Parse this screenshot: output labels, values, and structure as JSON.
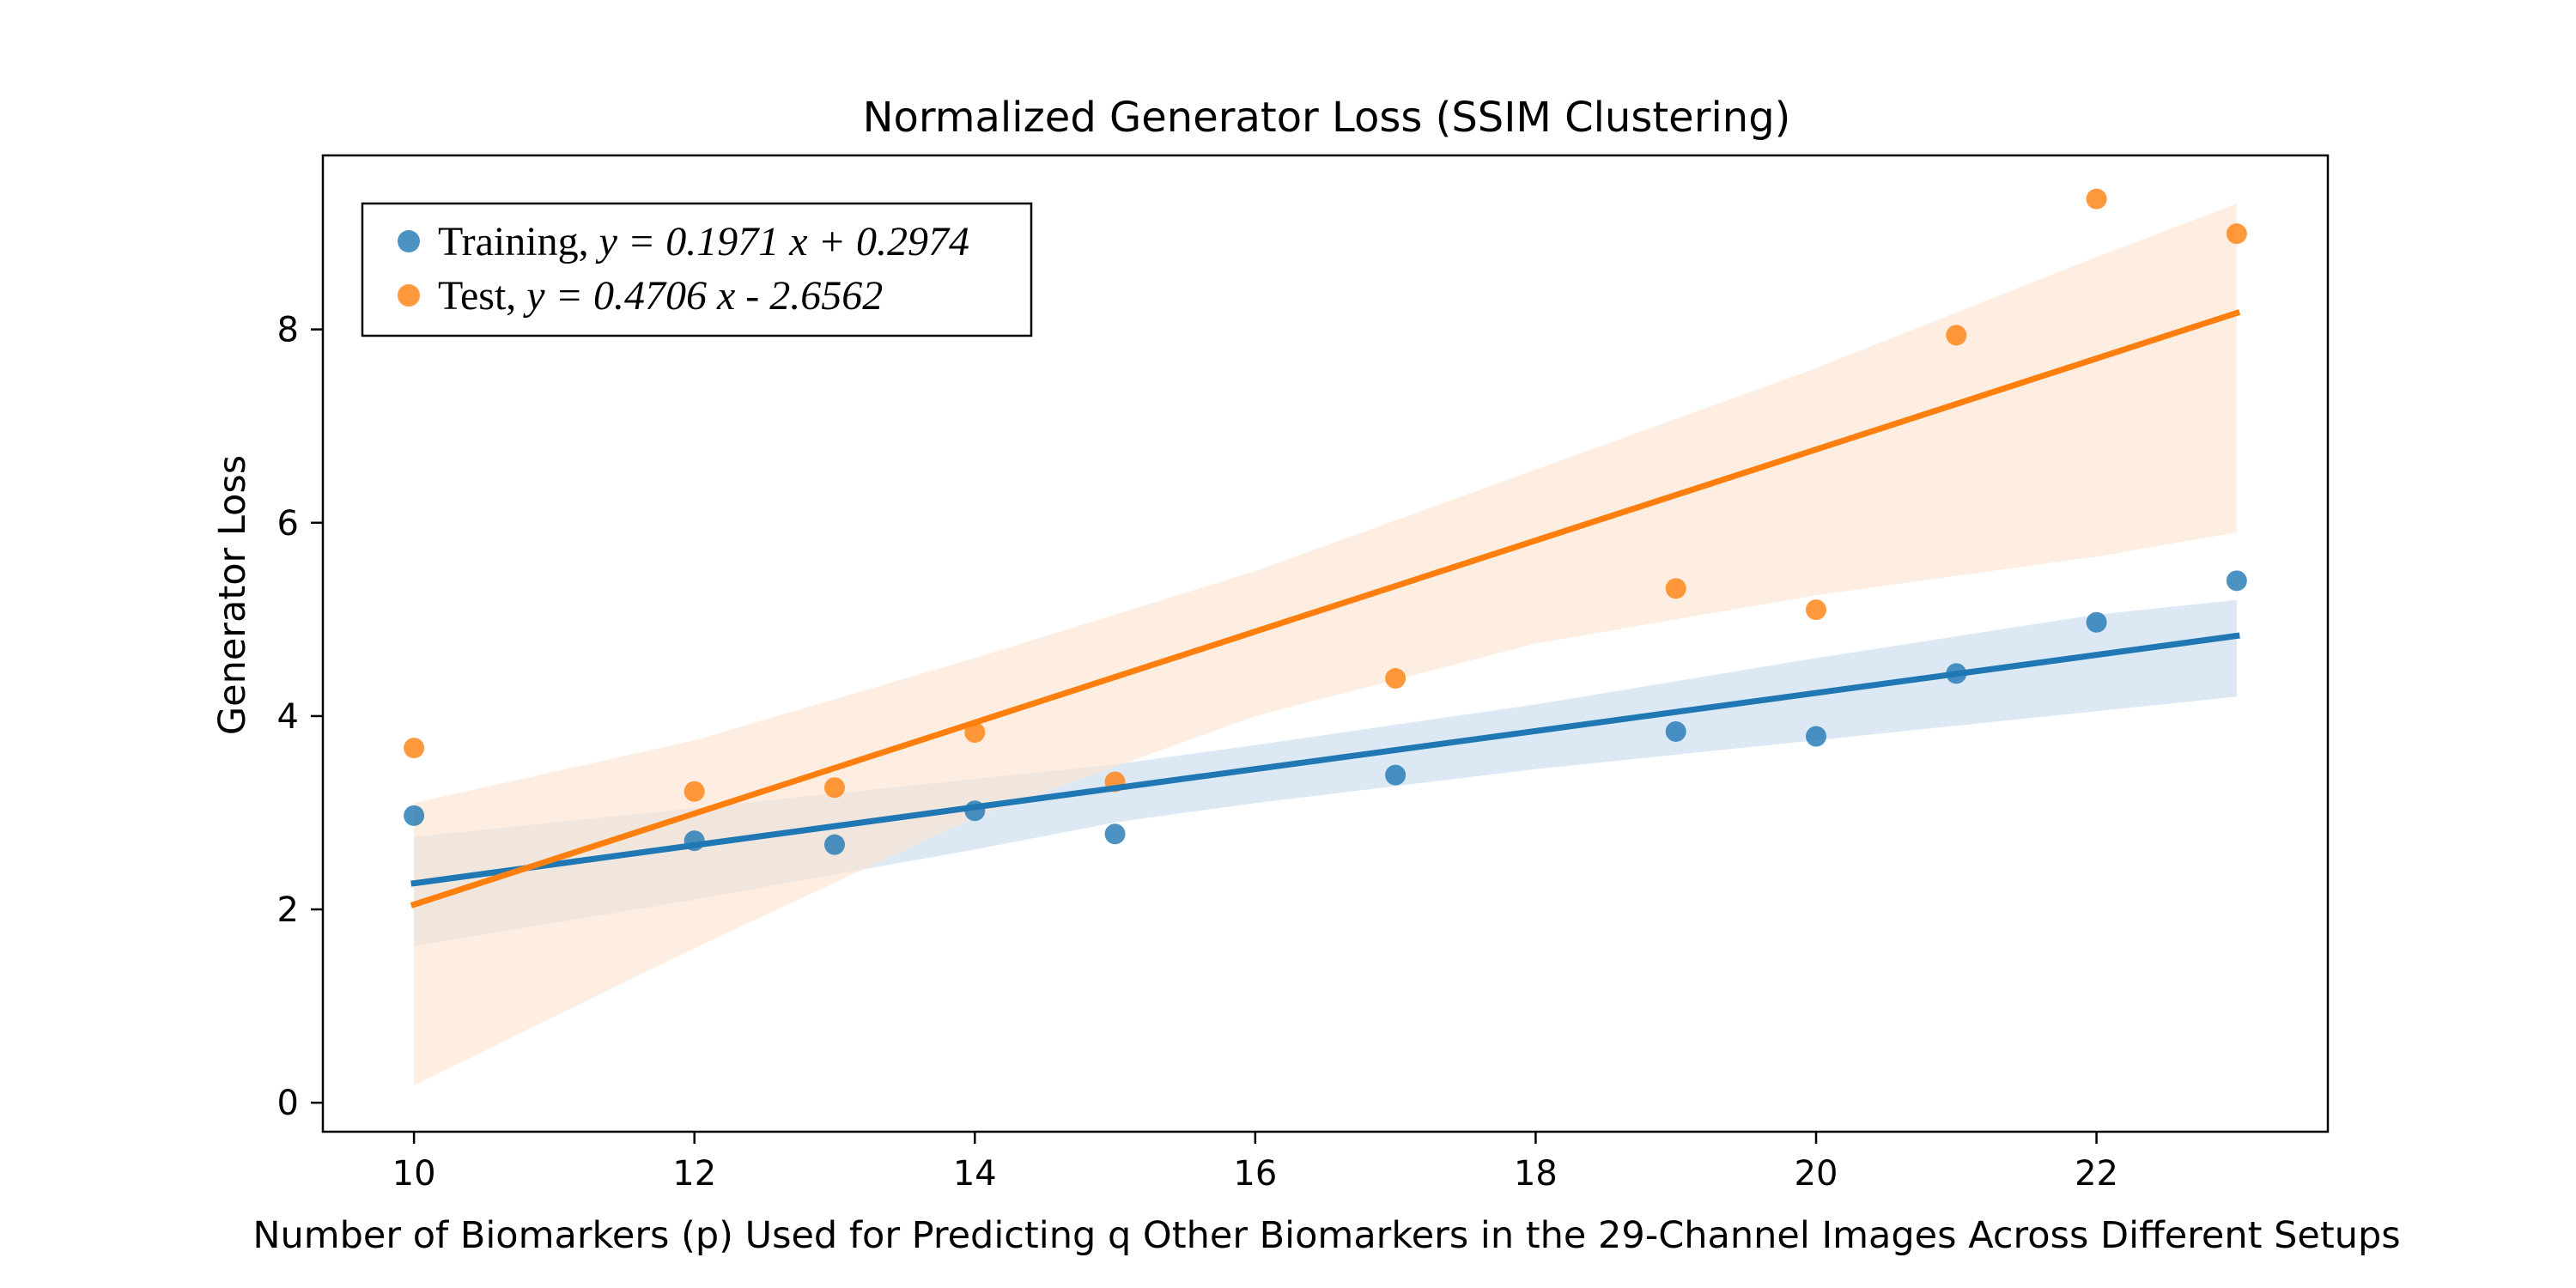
{
  "chart_data": {
    "type": "scatter",
    "title": "Normalized Generator Loss (SSIM Clustering)",
    "xlabel": "Number of Biomarkers (p) Used for Predicting q Other Biomarkers in the 29-Channel Images Across Different Setups",
    "ylabel": "Generator Loss",
    "xlim": [
      9.35,
      23.65
    ],
    "ylim": [
      -0.3,
      9.8
    ],
    "x_ticks": [
      10,
      12,
      14,
      16,
      18,
      20,
      22
    ],
    "y_ticks": [
      0,
      2,
      4,
      6,
      8
    ],
    "grid": false,
    "legend_position": "top-left",
    "series": [
      {
        "name": "Training",
        "legend_prefix": "Training, ",
        "equation": "y = 0.1971 x + 0.2974",
        "color": "#1f77b4",
        "band_color": "#c6dbef",
        "x": [
          10,
          12,
          13,
          14,
          15,
          17,
          19,
          20,
          21,
          22,
          23
        ],
        "y": [
          2.97,
          2.71,
          2.67,
          3.02,
          2.78,
          3.39,
          3.84,
          3.79,
          4.44,
          4.97,
          5.4
        ],
        "fit": {
          "x": [
            10,
            23
          ],
          "y": [
            2.27,
            4.83
          ]
        },
        "ci": {
          "x": [
            10,
            12,
            14,
            15,
            16,
            18,
            20,
            22,
            23
          ],
          "lower": [
            1.62,
            2.1,
            2.62,
            2.9,
            3.1,
            3.45,
            3.75,
            4.05,
            4.2
          ],
          "upper": [
            2.75,
            3.05,
            3.35,
            3.5,
            3.7,
            4.12,
            4.6,
            5.05,
            5.2
          ]
        }
      },
      {
        "name": "Test",
        "legend_prefix": "Test, ",
        "equation": "y = 0.4706 x - 2.6562",
        "color": "#ff7f0e",
        "band_color": "#fde3cf",
        "x": [
          10,
          12,
          13,
          14,
          15,
          17,
          19,
          20,
          21,
          22,
          23
        ],
        "y": [
          3.67,
          3.22,
          3.26,
          3.83,
          3.32,
          4.39,
          5.32,
          5.1,
          7.94,
          9.35,
          8.99
        ],
        "fit": {
          "x": [
            10,
            23
          ],
          "y": [
            2.05,
            8.17
          ]
        },
        "ci": {
          "x": [
            10,
            12,
            14,
            16,
            18,
            20,
            22,
            23
          ],
          "lower": [
            0.18,
            1.6,
            2.95,
            4.0,
            4.75,
            5.25,
            5.65,
            5.9
          ],
          "upper": [
            3.1,
            3.75,
            4.6,
            5.5,
            6.55,
            7.6,
            8.75,
            9.3
          ]
        }
      }
    ]
  }
}
